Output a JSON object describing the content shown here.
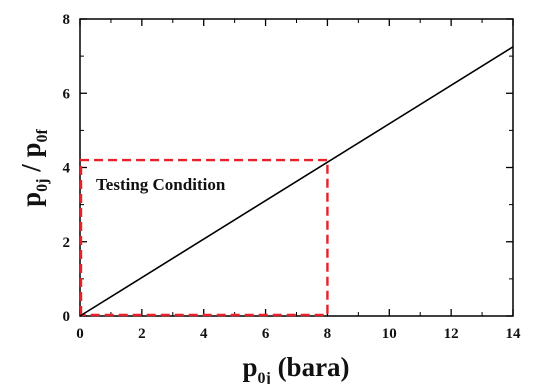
{
  "chart_data": {
    "type": "line",
    "title": "",
    "xlabel": {
      "main": "p",
      "sub": "0j",
      "suffix": " (bara)"
    },
    "ylabel": {
      "num": "p",
      "num_sub": "0j",
      "sep": " / ",
      "den": "p",
      "den_sub": "0f"
    },
    "xlim": [
      0,
      14
    ],
    "ylim": [
      0,
      8
    ],
    "xticks": [
      0,
      2,
      4,
      6,
      8,
      10,
      12,
      14
    ],
    "yticks": [
      0,
      2,
      4,
      6,
      8
    ],
    "grid": false,
    "series": [
      {
        "x": [
          0,
          14
        ],
        "y": [
          0,
          7.25
        ],
        "color": "#000000",
        "style": "solid"
      }
    ],
    "annotations": [
      {
        "type": "dashed-rect",
        "color": "#e8202a",
        "x": [
          0,
          8
        ],
        "y": [
          0,
          4.2
        ],
        "label": "Testing Condition"
      }
    ]
  }
}
